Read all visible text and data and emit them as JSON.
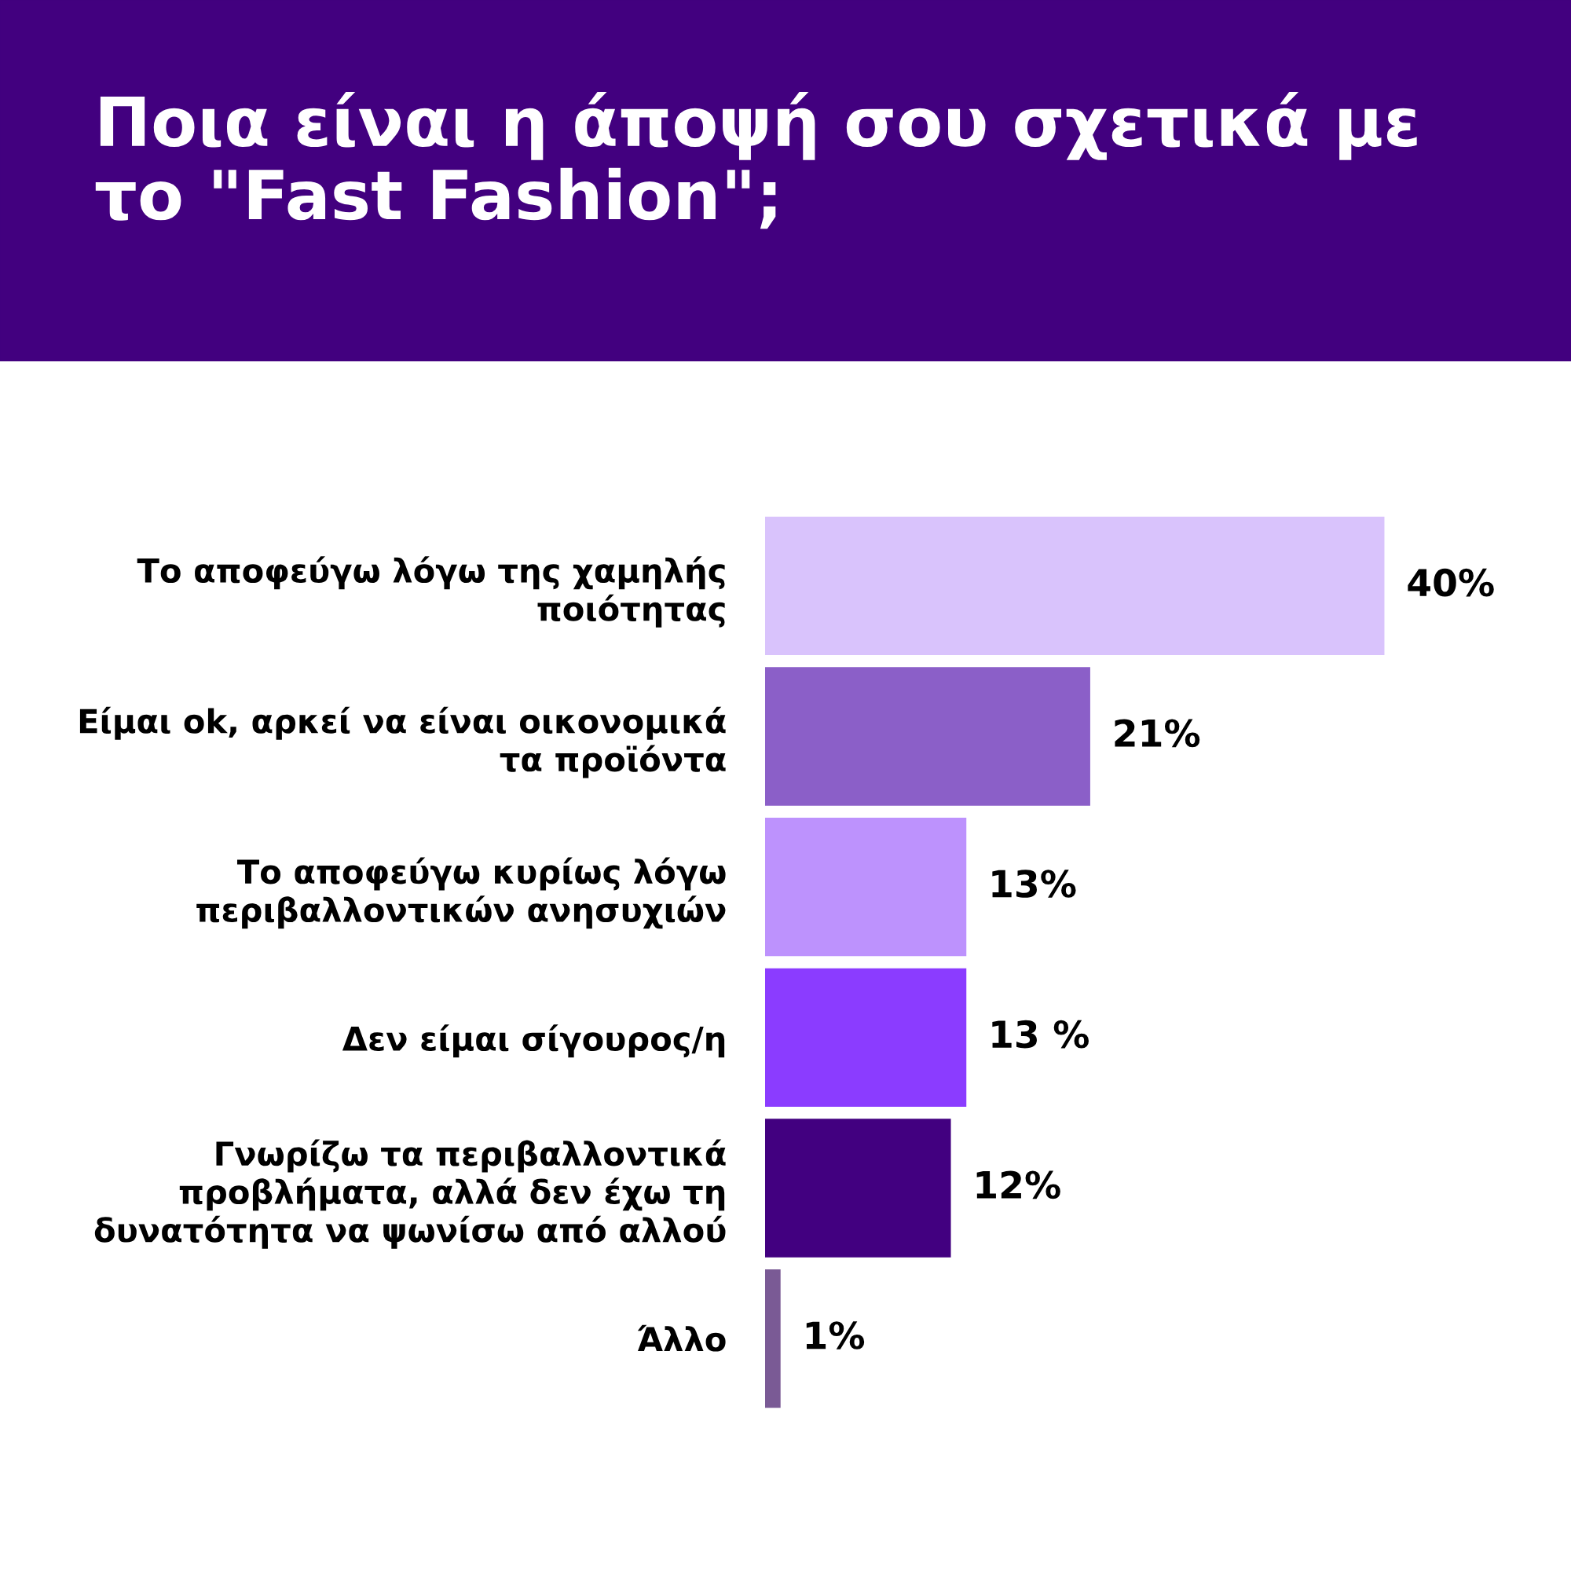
{
  "chart_data": {
    "type": "bar",
    "orientation": "horizontal",
    "title": "Ποια είναι η άποψή σου σχετικά με\nτο \"Fast Fashion\";",
    "categories": [
      "Το αποφεύγω λόγω της χαμηλής\nποιότητας",
      "Είμαι ok, αρκεί να είναι οικονομικά\nτα προϊόντα",
      "Το αποφεύγω κυρίως λόγω\nπεριβαλλοντικών ανησυχιών",
      "Δεν είμαι σίγουρος/η",
      "Γνωρίζω τα περιβαλλοντικά\nπροβλήματα, αλλά δεν έχω τη\nδυνατότητα να ψωνίσω από αλλού",
      "Άλλο"
    ],
    "values": [
      40,
      21,
      13,
      13,
      12,
      1
    ],
    "colors": [
      "#d9c3fc",
      "#8b5fc8",
      "#bd92fd",
      "#8b3cff",
      "#420080",
      "#7a5a95"
    ],
    "value_labels": [
      "40%",
      "21%",
      "13%",
      "13 %",
      "12%",
      "1%"
    ]
  }
}
